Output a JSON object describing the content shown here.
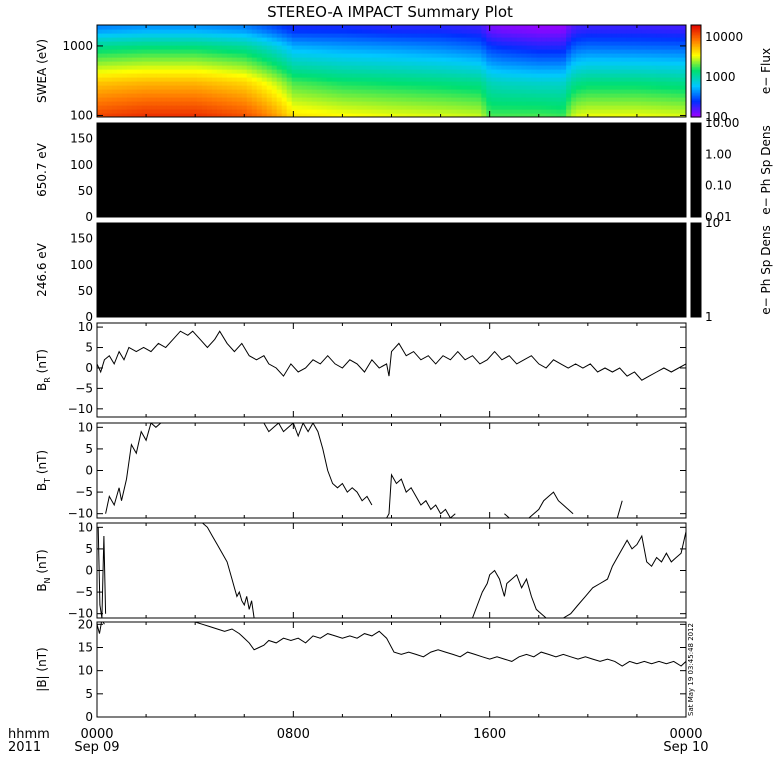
{
  "title": "STEREO-A IMPACT Summary Plot",
  "time_axis": {
    "row_label": "hhmm",
    "year_label": "2011",
    "ticks": [
      {
        "hours": 0,
        "label": "0000",
        "sublabel": "Sep 09"
      },
      {
        "hours": 8,
        "label": "0800",
        "sublabel": ""
      },
      {
        "hours": 16,
        "label": "1600",
        "sublabel": ""
      },
      {
        "hours": 24,
        "label": "0000",
        "sublabel": "Sep 10"
      }
    ],
    "range_hours": [
      0,
      24
    ]
  },
  "timestamp_stamp": "Sat May 19 03:45:48 2012",
  "colors": {
    "frame": "#000000",
    "line": "#000000",
    "panel_fill": "#000000",
    "background": "#ffffff"
  },
  "chart_data": [
    {
      "type": "heatmap",
      "id": "swea",
      "ylabel": "SWEA (eV)",
      "y_scale": "log",
      "ylim": [
        95,
        2000
      ],
      "yticks": [
        {
          "v": 100,
          "label": "100"
        },
        {
          "v": 1000,
          "label": "1000"
        }
      ],
      "colorbar": {
        "label": "e− Flux",
        "scale": "log",
        "range": [
          100,
          20000
        ],
        "ticks": [
          {
            "v": 100,
            "label": "100"
          },
          {
            "v": 1000,
            "label": "1000"
          },
          {
            "v": 10000,
            "label": "10000"
          }
        ],
        "colormap": [
          "#a000ff",
          "#0030ff",
          "#00c8ff",
          "#00e070",
          "#ffff00",
          "#ff7800",
          "#e00000"
        ]
      },
      "energies_eV": [
        100,
        130,
        170,
        220,
        300,
        400,
        550,
        750,
        1000,
        1350,
        1800
      ],
      "time_hours": [
        0,
        1.5,
        3,
        4.5,
        6,
        7.5,
        9,
        10.5,
        12,
        13.5,
        15,
        16.5,
        18,
        19.5,
        21,
        22.5,
        24
      ],
      "flux_profile": {
        "ref_energies_eV": [
          100,
          300,
          1000,
          1800
        ],
        "times_hours": [
          0,
          2,
          4,
          6,
          8,
          10,
          12,
          14,
          15.6,
          16,
          16.5,
          18,
          19,
          19.5,
          20,
          22,
          24
        ],
        "flux_at_100eV": [
          12000,
          14000,
          14000,
          11000,
          4000,
          3500,
          3200,
          3000,
          2800,
          1800,
          1800,
          1800,
          1700,
          3000,
          3200,
          3200,
          3000
        ],
        "flux_at_300eV": [
          5000,
          5500,
          5500,
          4500,
          1800,
          1500,
          1400,
          1300,
          1200,
          900,
          850,
          800,
          800,
          1200,
          1300,
          1300,
          1200
        ],
        "flux_at_1000eV": [
          1200,
          1300,
          1300,
          1100,
          500,
          450,
          420,
          380,
          330,
          250,
          230,
          200,
          200,
          320,
          340,
          330,
          320
        ],
        "flux_at_1800eV": [
          400,
          450,
          450,
          400,
          220,
          220,
          200,
          200,
          180,
          130,
          120,
          110,
          110,
          170,
          180,
          180,
          170
        ]
      }
    },
    {
      "type": "heatmap",
      "id": "pad650",
      "ylabel": "650.7 eV",
      "ylim": [
        0,
        180
      ],
      "yticks": [
        {
          "v": 0,
          "label": "0"
        },
        {
          "v": 50,
          "label": "50"
        },
        {
          "v": 100,
          "label": "100"
        },
        {
          "v": 150,
          "label": "150"
        }
      ],
      "fill": "black",
      "colorbar": {
        "label": "e− Ph Sp Dens",
        "scale": "log",
        "range": [
          0.01,
          10
        ],
        "ticks": [
          {
            "v": 0.01,
            "label": "0.01"
          },
          {
            "v": 0.1,
            "label": "0.10"
          },
          {
            "v": 1,
            "label": "1.00"
          },
          {
            "v": 10,
            "label": "10.00"
          }
        ]
      }
    },
    {
      "type": "heatmap",
      "id": "pad246",
      "ylabel": "246.6 eV",
      "ylim": [
        0,
        180
      ],
      "yticks": [
        {
          "v": 0,
          "label": "0"
        },
        {
          "v": 50,
          "label": "50"
        },
        {
          "v": 100,
          "label": "100"
        },
        {
          "v": 150,
          "label": "150"
        }
      ],
      "fill": "black",
      "colorbar": {
        "label": "e− Ph Sp Dens",
        "scale": "log",
        "range": [
          1,
          10
        ],
        "ticks": [
          {
            "v": 1,
            "label": "1"
          },
          {
            "v": 10,
            "label": "10"
          }
        ]
      }
    },
    {
      "type": "line",
      "id": "br",
      "ylabel": "B",
      "ylabel_sub": "R",
      "ylabel_unit": "(nT)",
      "ylim": [
        -12,
        11
      ],
      "yticks": [
        {
          "v": -10,
          "label": "−10"
        },
        {
          "v": -5,
          "label": "−5"
        },
        {
          "v": 0,
          "label": "0"
        },
        {
          "v": 5,
          "label": "5"
        },
        {
          "v": 10,
          "label": "10"
        }
      ],
      "x": [
        0,
        0.15,
        0.3,
        0.5,
        0.7,
        0.9,
        1.1,
        1.3,
        1.6,
        1.9,
        2.2,
        2.5,
        2.8,
        3.1,
        3.4,
        3.7,
        3.9,
        4.2,
        4.5,
        4.8,
        5.0,
        5.3,
        5.6,
        5.9,
        6.2,
        6.5,
        6.8,
        7.0,
        7.3,
        7.6,
        7.9,
        8.2,
        8.5,
        8.8,
        9.1,
        9.4,
        9.7,
        10.0,
        10.3,
        10.6,
        10.9,
        11.2,
        11.5,
        11.8,
        11.9,
        12.0,
        12.3,
        12.6,
        12.9,
        13.2,
        13.5,
        13.8,
        14.1,
        14.4,
        14.7,
        15.0,
        15.3,
        15.6,
        15.9,
        16.2,
        16.5,
        16.8,
        17.1,
        17.4,
        17.7,
        18.0,
        18.3,
        18.6,
        18.9,
        19.2,
        19.5,
        19.8,
        20.1,
        20.4,
        20.7,
        21.0,
        21.3,
        21.6,
        21.9,
        22.2,
        22.5,
        22.8,
        23.1,
        23.4,
        23.7,
        24.0
      ],
      "y": [
        1,
        -1,
        2,
        3,
        1,
        4,
        2,
        5,
        4,
        5,
        4,
        6,
        5,
        7,
        9,
        8,
        9,
        7,
        5,
        7,
        9,
        6,
        4,
        6,
        3,
        2,
        3,
        1,
        0,
        -2,
        1,
        -1,
        0,
        2,
        1,
        3,
        1,
        0,
        2,
        1,
        -1,
        2,
        0,
        1,
        -2,
        4,
        6,
        3,
        4,
        2,
        3,
        1,
        3,
        2,
        4,
        2,
        3,
        1,
        2,
        4,
        2,
        3,
        1,
        2,
        3,
        1,
        0,
        2,
        1,
        0,
        1,
        0,
        1,
        -1,
        0,
        -1,
        0,
        -2,
        -1,
        -3,
        -2,
        -1,
        0,
        -1,
        0,
        1
      ]
    },
    {
      "type": "line",
      "id": "bt",
      "ylabel": "B",
      "ylabel_sub": "T",
      "ylabel_unit": "(nT)",
      "ylim": [
        -11,
        11
      ],
      "yticks": [
        {
          "v": -10,
          "label": "−10"
        },
        {
          "v": -5,
          "label": "−5"
        },
        {
          "v": 0,
          "label": "0"
        },
        {
          "v": 5,
          "label": "5"
        },
        {
          "v": 10,
          "label": "10"
        }
      ],
      "x": [
        0.35,
        0.5,
        0.7,
        0.9,
        1.0,
        1.2,
        1.4,
        1.6,
        1.8,
        2.0,
        2.2,
        2.4,
        2.6,
        2.8,
        null,
        6.8,
        7.0,
        7.2,
        7.4,
        7.6,
        7.8,
        8.0,
        8.2,
        8.4,
        8.6,
        8.8,
        9.0,
        9.2,
        9.4,
        9.6,
        9.8,
        10.0,
        10.2,
        10.4,
        10.6,
        10.8,
        11.0,
        11.2,
        null,
        11.8,
        11.9,
        12.0,
        12.2,
        12.4,
        12.6,
        12.8,
        13.0,
        13.2,
        13.4,
        13.6,
        13.8,
        14.0,
        14.2,
        14.4,
        14.6,
        null,
        16.6,
        16.8,
        null,
        17.6,
        17.8,
        18.0,
        18.2,
        18.4,
        18.6,
        18.8,
        19.0,
        19.2,
        19.4,
        null,
        21.2,
        21.4
      ],
      "y": [
        -10,
        -6,
        -8,
        -4,
        -7,
        -2,
        6,
        4,
        9,
        7,
        11,
        10,
        11,
        11,
        null,
        11,
        9,
        10,
        11,
        9,
        10,
        11,
        8,
        11,
        9,
        11,
        9,
        5,
        0,
        -3,
        -4,
        -3,
        -5,
        -4,
        -5,
        -7,
        -6,
        -8,
        null,
        -11,
        -10,
        -1,
        -3,
        -2,
        -5,
        -4,
        -6,
        -8,
        -7,
        -9,
        -8,
        -10,
        -9,
        -11,
        -10,
        null,
        -10,
        -11,
        null,
        -11,
        -10,
        -9,
        -7,
        -6,
        -5,
        -7,
        -8,
        -9,
        -10,
        null,
        -11,
        -7
      ]
    },
    {
      "type": "line",
      "id": "bn",
      "ylabel": "B",
      "ylabel_sub": "N",
      "ylabel_unit": "(nT)",
      "ylim": [
        -11,
        11
      ],
      "yticks": [
        {
          "v": -10,
          "label": "−10"
        },
        {
          "v": -5,
          "label": "−5"
        },
        {
          "v": 0,
          "label": "0"
        },
        {
          "v": 5,
          "label": "5"
        },
        {
          "v": 10,
          "label": "10"
        }
      ],
      "x": [
        0.05,
        0.12,
        0.2,
        0.28,
        0.35,
        null,
        4.3,
        4.5,
        4.7,
        4.9,
        5.1,
        5.3,
        5.5,
        5.6,
        5.7,
        5.8,
        5.9,
        6.0,
        6.1,
        6.2,
        6.3,
        6.4,
        null,
        15.3,
        15.5,
        15.7,
        15.9,
        16.0,
        16.2,
        16.4,
        16.5,
        16.6,
        16.7,
        16.9,
        17.1,
        17.3,
        17.5,
        17.7,
        17.9,
        18.1,
        18.3,
        null,
        19.0,
        19.3,
        19.6,
        19.9,
        20.2,
        20.5,
        20.8,
        21.0,
        21.2,
        21.4,
        21.6,
        21.8,
        22.0,
        22.2,
        22.4,
        22.6,
        22.8,
        23.0,
        23.2,
        23.4,
        23.6,
        23.8,
        24.0
      ],
      "y": [
        10,
        -8,
        -11,
        8,
        -10,
        null,
        11,
        10,
        8,
        6,
        4,
        2,
        -2,
        -4,
        -6,
        -5,
        -7,
        -8,
        -6,
        -9,
        -7,
        -11,
        null,
        -11,
        -8,
        -5,
        -3,
        -1,
        0,
        -2,
        -4,
        -6,
        -3,
        -2,
        -1,
        -4,
        -2,
        -6,
        -9,
        -10,
        -11,
        null,
        -11,
        -10,
        -8,
        -6,
        -4,
        -3,
        -2,
        1,
        3,
        5,
        7,
        5,
        6,
        8,
        2,
        1,
        3,
        2,
        4,
        2,
        3,
        4,
        9
      ]
    },
    {
      "type": "line",
      "id": "bmag",
      "ylabel": "|B|",
      "ylabel_unit": "(nT)",
      "ylim": [
        0,
        20.5
      ],
      "yticks": [
        {
          "v": 0,
          "label": "0"
        },
        {
          "v": 5,
          "label": "5"
        },
        {
          "v": 10,
          "label": "10"
        },
        {
          "v": 15,
          "label": "15"
        },
        {
          "v": 20,
          "label": "20"
        }
      ],
      "x": [
        0,
        0.1,
        0.2,
        0.3,
        null,
        4.0,
        4.3,
        4.6,
        4.9,
        5.2,
        5.5,
        5.8,
        6.0,
        6.2,
        6.4,
        6.6,
        6.8,
        7.0,
        7.3,
        7.6,
        7.9,
        8.2,
        8.5,
        8.8,
        9.1,
        9.4,
        9.7,
        10.0,
        10.3,
        10.6,
        10.9,
        11.2,
        11.5,
        11.8,
        12.1,
        12.4,
        12.7,
        13.0,
        13.3,
        13.6,
        13.9,
        14.2,
        14.5,
        14.8,
        15.1,
        15.4,
        15.7,
        16.0,
        16.3,
        16.6,
        16.9,
        17.2,
        17.5,
        17.8,
        18.1,
        18.4,
        18.7,
        19.0,
        19.3,
        19.6,
        19.9,
        20.2,
        20.5,
        20.8,
        21.1,
        21.4,
        21.7,
        22.0,
        22.3,
        22.6,
        22.9,
        23.2,
        23.5,
        23.8,
        24.0
      ],
      "y": [
        20,
        18,
        21,
        20,
        null,
        20.5,
        20,
        19.5,
        19,
        18.5,
        19,
        18,
        17,
        16,
        14.5,
        15,
        15.5,
        16.5,
        16,
        17,
        16.5,
        17,
        16,
        17.5,
        17,
        18,
        17.5,
        17,
        17.5,
        17,
        18,
        17.5,
        18.5,
        17,
        14,
        13.5,
        14,
        13.5,
        13,
        14,
        14.5,
        14,
        13.5,
        13,
        14,
        13.5,
        13,
        12.5,
        13,
        12.5,
        12,
        13,
        13.5,
        13,
        14,
        13.5,
        13,
        13.5,
        13,
        12.5,
        13,
        12.5,
        12,
        12.5,
        12,
        11,
        12,
        11.5,
        12,
        11.5,
        12,
        11.5,
        12,
        11,
        12
      ]
    }
  ]
}
